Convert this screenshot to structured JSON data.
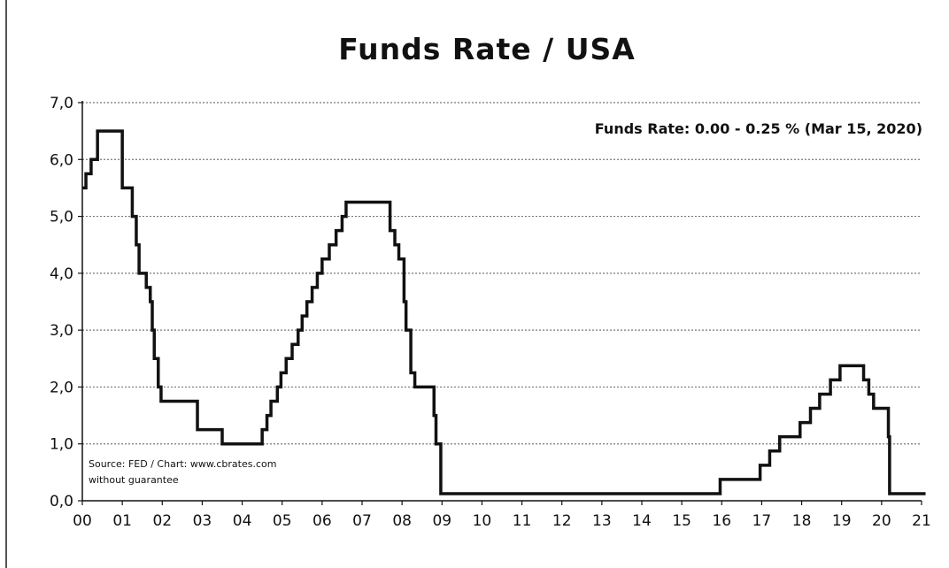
{
  "chart_data": {
    "type": "line",
    "title": "Funds Rate / USA",
    "annotation": "Funds Rate: 0.00 - 0.25 % (Mar 15, 2020)",
    "source_line1": "Source: FED / Chart: www.cbrates.com",
    "source_line2": "without guarantee",
    "xlabel": "",
    "ylabel": "",
    "x_tick_labels": [
      "00",
      "01",
      "02",
      "03",
      "04",
      "05",
      "06",
      "07",
      "08",
      "09",
      "10",
      "11",
      "12",
      "13",
      "14",
      "15",
      "16",
      "17",
      "18",
      "19",
      "20",
      "21"
    ],
    "y_tick_labels": [
      "0,0",
      "1,0",
      "2,0",
      "3,0",
      "4,0",
      "5,0",
      "6,0",
      "7,0"
    ],
    "xlim": [
      2000,
      2021
    ],
    "ylim": [
      0,
      7
    ],
    "grid": true,
    "step": true,
    "series": [
      {
        "points": [
          [
            2000.0,
            5.5
          ],
          [
            2000.09,
            5.75
          ],
          [
            2000.22,
            6.0
          ],
          [
            2000.38,
            6.5
          ],
          [
            2001.0,
            5.5
          ],
          [
            2001.25,
            5.0
          ],
          [
            2001.35,
            4.5
          ],
          [
            2001.42,
            4.0
          ],
          [
            2001.6,
            3.75
          ],
          [
            2001.7,
            3.5
          ],
          [
            2001.75,
            3.0
          ],
          [
            2001.8,
            2.5
          ],
          [
            2001.9,
            2.0
          ],
          [
            2001.97,
            1.75
          ],
          [
            2002.88,
            1.25
          ],
          [
            2003.5,
            1.0
          ],
          [
            2004.5,
            1.25
          ],
          [
            2004.62,
            1.5
          ],
          [
            2004.72,
            1.75
          ],
          [
            2004.88,
            2.0
          ],
          [
            2004.97,
            2.25
          ],
          [
            2005.1,
            2.5
          ],
          [
            2005.25,
            2.75
          ],
          [
            2005.4,
            3.0
          ],
          [
            2005.5,
            3.25
          ],
          [
            2005.62,
            3.5
          ],
          [
            2005.75,
            3.75
          ],
          [
            2005.88,
            4.0
          ],
          [
            2006.0,
            4.25
          ],
          [
            2006.18,
            4.5
          ],
          [
            2006.35,
            4.75
          ],
          [
            2006.5,
            5.0
          ],
          [
            2006.6,
            5.25
          ],
          [
            2007.7,
            4.75
          ],
          [
            2007.82,
            4.5
          ],
          [
            2007.92,
            4.25
          ],
          [
            2008.05,
            3.5
          ],
          [
            2008.1,
            3.0
          ],
          [
            2008.22,
            2.25
          ],
          [
            2008.32,
            2.0
          ],
          [
            2008.8,
            1.5
          ],
          [
            2008.85,
            1.0
          ],
          [
            2008.97,
            0.125
          ],
          [
            2015.96,
            0.375
          ],
          [
            2016.96,
            0.625
          ],
          [
            2017.2,
            0.875
          ],
          [
            2017.45,
            1.125
          ],
          [
            2017.96,
            1.375
          ],
          [
            2018.22,
            1.625
          ],
          [
            2018.45,
            1.875
          ],
          [
            2018.72,
            2.125
          ],
          [
            2018.96,
            2.375
          ],
          [
            2019.55,
            2.125
          ],
          [
            2019.68,
            1.875
          ],
          [
            2019.8,
            1.625
          ],
          [
            2020.17,
            1.125
          ],
          [
            2020.2,
            0.125
          ],
          [
            2021.1,
            0.125
          ]
        ]
      }
    ]
  }
}
